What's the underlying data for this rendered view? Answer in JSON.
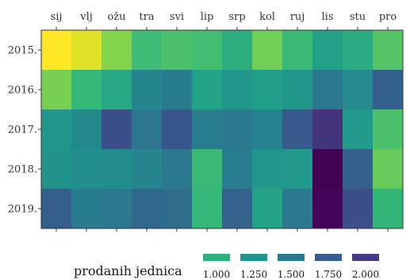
{
  "chart_data": {
    "type": "heatmap",
    "title": "",
    "xlabel": "",
    "ylabel": "",
    "x_axis_position": "top",
    "categories_x": [
      "sij",
      "vlj",
      "ožu",
      "tra",
      "svi",
      "lip",
      "srp",
      "kol",
      "ruj",
      "lis",
      "stu",
      "pro"
    ],
    "categories_y": [
      "2015.",
      "2016.",
      "2017.",
      "2018.",
      "2019."
    ],
    "values": [
      [
        180,
        280,
        600,
        880,
        820,
        860,
        1020,
        660,
        900,
        1140,
        1040,
        780
      ],
      [
        640,
        920,
        1080,
        1380,
        1480,
        1120,
        1240,
        1160,
        1240,
        1520,
        1340,
        1720
      ],
      [
        1240,
        1350,
        1850,
        1540,
        1800,
        1460,
        1500,
        1420,
        1780,
        2060,
        1200,
        820
      ],
      [
        1260,
        1300,
        1320,
        1400,
        1500,
        900,
        1460,
        1240,
        1220,
        2400,
        1720,
        700
      ],
      [
        1740,
        1480,
        1500,
        1660,
        1620,
        920,
        1700,
        1120,
        1500,
        2380,
        1860,
        940
      ]
    ],
    "legend": {
      "title": "prodanih jednica",
      "position": "bottom",
      "breaks": [
        1000,
        1250,
        1500,
        1750,
        2000
      ],
      "labels": [
        "1.000",
        "1.250",
        "1.500",
        "1.750",
        "2.000"
      ]
    },
    "color_scale": {
      "name": "viridis",
      "domain": [
        180,
        2400
      ],
      "stops": [
        "#440154",
        "#482878",
        "#3e4989",
        "#31688e",
        "#26828e",
        "#1f9e89",
        "#35b779",
        "#6ece58",
        "#b5de2b",
        "#fde725"
      ]
    },
    "grid": false
  }
}
